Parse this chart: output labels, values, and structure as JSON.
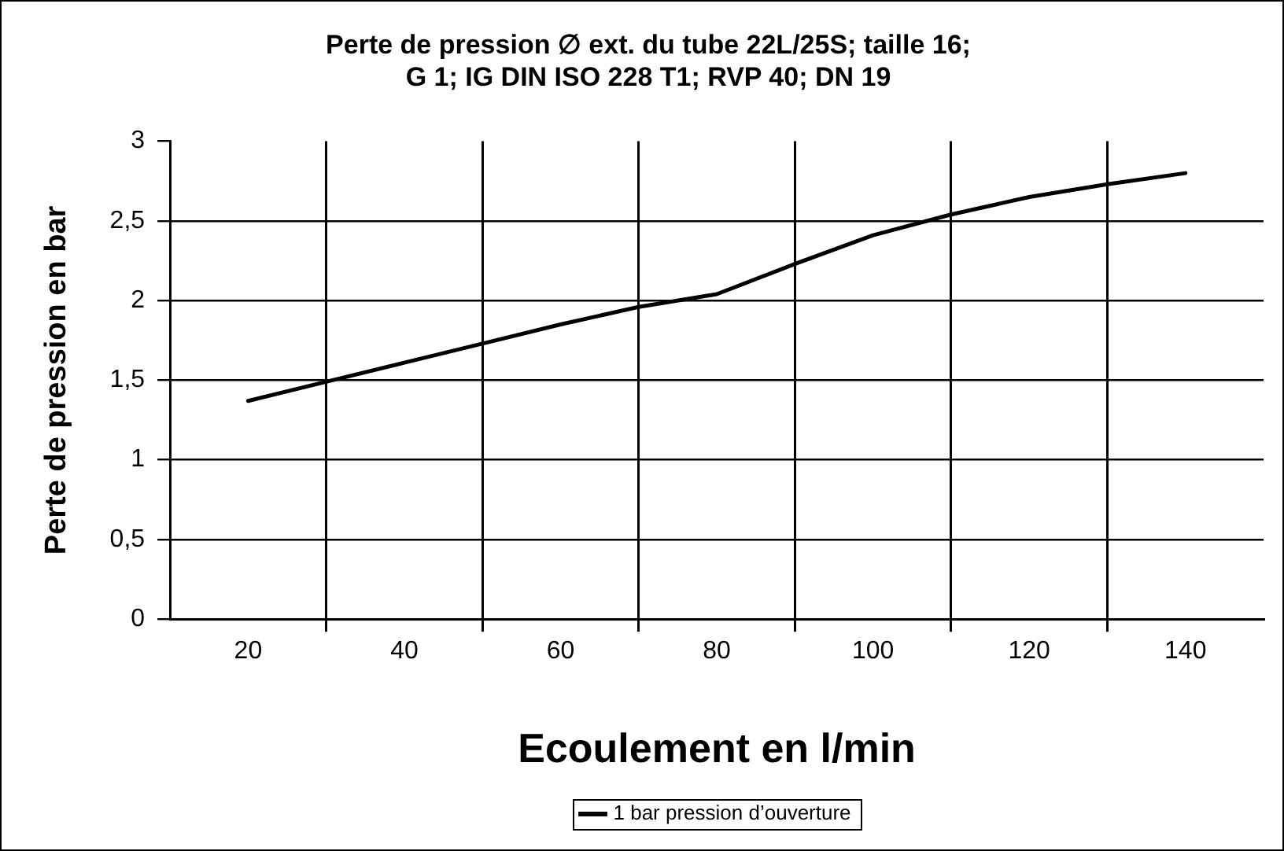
{
  "chart_data": {
    "type": "line",
    "title": "Perte de pression ∅ ext. du tube 22L/25S; taille 16;\nG 1; IG DIN ISO 228 T1; RVP 40; DN 19",
    "xlabel": "Ecoulement en l/min",
    "ylabel": "Perte de pression en bar",
    "x": [
      20,
      30,
      40,
      50,
      60,
      70,
      80,
      90,
      100,
      110,
      120,
      130,
      140
    ],
    "series": [
      {
        "name": "1 bar pression d’ouverture",
        "color": "#000000",
        "values": [
          1.37,
          1.49,
          1.61,
          1.73,
          1.85,
          1.96,
          2.04,
          2.23,
          2.41,
          2.54,
          2.65,
          2.73,
          2.8
        ]
      }
    ],
    "xlim": [
      10,
      150
    ],
    "xticks": [
      20,
      {
        "value": 30,
        "label": null
      },
      40,
      {
        "value": 50,
        "label": null
      },
      60,
      {
        "value": 70,
        "label": null
      },
      80,
      {
        "value": 90,
        "label": null
      },
      100,
      {
        "value": 110,
        "label": null
      },
      120,
      {
        "value": 130,
        "label": null
      },
      140
    ],
    "ylim": [
      0,
      3
    ],
    "yticks": [
      0,
      {
        "value": 0.5,
        "label": "0,5"
      },
      1,
      {
        "value": 1.5,
        "label": "1,5"
      },
      2,
      {
        "value": 2.5,
        "label": "2,5"
      },
      3
    ],
    "grid": true,
    "legend": "bottom",
    "marker": "none",
    "line_style": "solid"
  }
}
